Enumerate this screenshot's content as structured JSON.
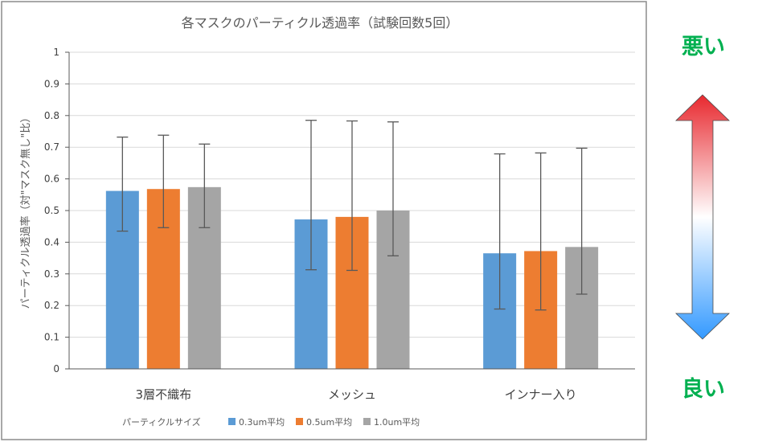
{
  "chart_data": {
    "type": "bar",
    "title": "各マスクのパーティクル透過率（試験回数5回）",
    "ylabel": "パーティクル透過率（対\"マスク無し\"比）",
    "xlabel": "",
    "ylim": [
      0,
      1
    ],
    "yticks": [
      "0",
      "0.1",
      "0.2",
      "0.3",
      "0.4",
      "0.5",
      "0.6",
      "0.7",
      "0.8",
      "0.9",
      "1"
    ],
    "categories": [
      "3層不織布",
      "メッシュ",
      "インナー入り"
    ],
    "grid": true,
    "legend_title": "パーティクルサイズ",
    "legend_position": "bottom",
    "series": [
      {
        "name": "0.3um平均",
        "color": "#5B9BD5",
        "values": [
          0.562,
          0.472,
          0.365
        ],
        "err_low": [
          0.435,
          0.313,
          0.189
        ],
        "err_high": [
          0.732,
          0.785,
          0.679
        ]
      },
      {
        "name": "0.5um平均",
        "color": "#ED7D31",
        "values": [
          0.568,
          0.48,
          0.372
        ],
        "err_low": [
          0.446,
          0.311,
          0.186
        ],
        "err_high": [
          0.738,
          0.783,
          0.682
        ]
      },
      {
        "name": "1.0um平均",
        "color": "#A5A5A5",
        "values": [
          0.574,
          0.5,
          0.385
        ],
        "err_low": [
          0.446,
          0.357,
          0.236
        ],
        "err_high": [
          0.71,
          0.78,
          0.697
        ]
      }
    ]
  },
  "side_labels": {
    "top": "悪い",
    "bottom": "良い"
  },
  "colors": {
    "arrow_top": "#E8282E",
    "arrow_mid": "#FFFFFF",
    "arrow_bottom": "#3399FF",
    "side_text": "#00B050"
  }
}
